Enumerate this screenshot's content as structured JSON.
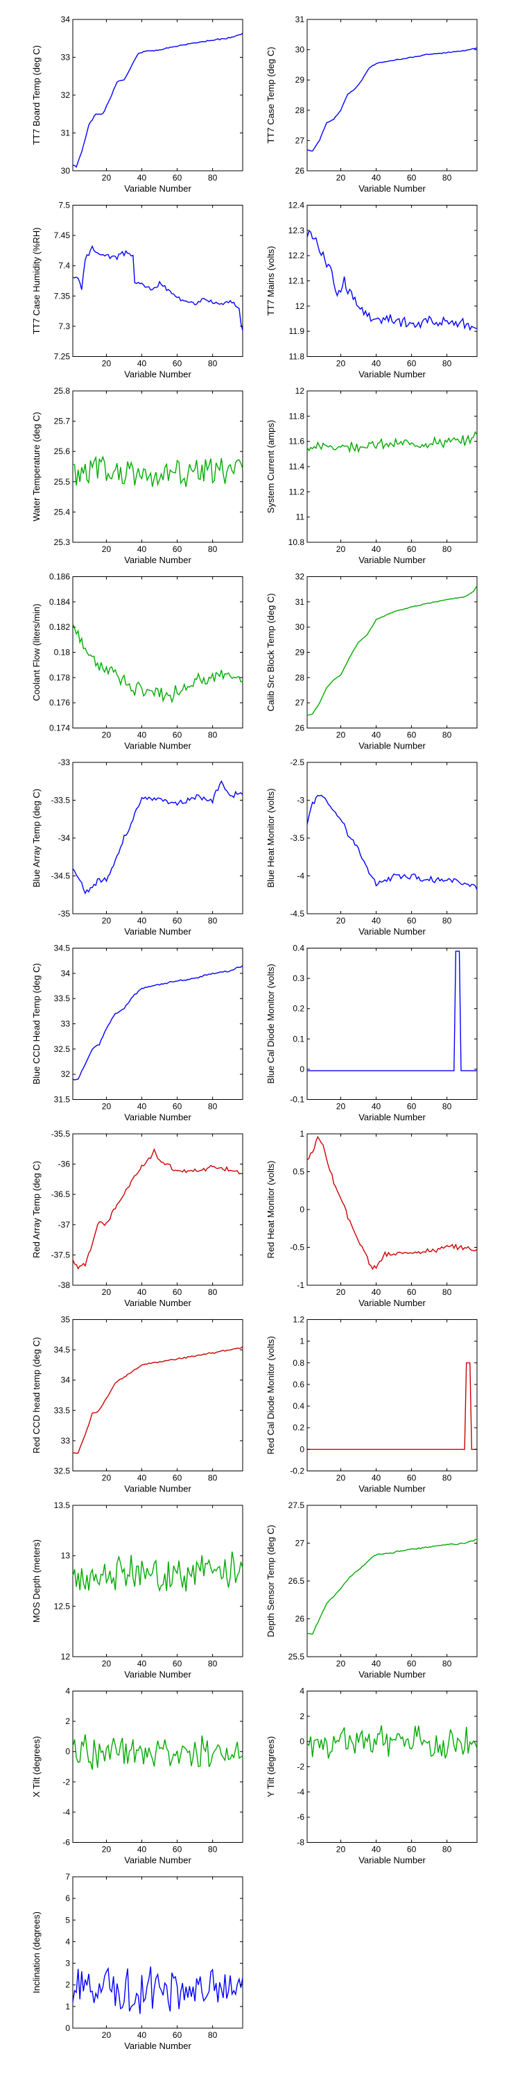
{
  "chart_data": [
    {
      "type": "line",
      "ylabel": "TT7 Board Temp (deg C)",
      "xlabel": "Variable Number",
      "color": "#0000ff",
      "xlim": [
        1,
        97
      ],
      "ylim": [
        30,
        34
      ],
      "xticks": [
        20,
        40,
        60,
        80
      ],
      "yticks": [
        30,
        31,
        32,
        33,
        34
      ],
      "ytick_labels": [
        "30",
        "31",
        "32",
        "33",
        "34"
      ],
      "kx": [
        1,
        3,
        6,
        10,
        14,
        18,
        22,
        26,
        30,
        34,
        38,
        42,
        50,
        60,
        70,
        80,
        90,
        97
      ],
      "ky": [
        30.15,
        30.1,
        30.5,
        31.2,
        31.5,
        31.5,
        31.9,
        32.35,
        32.4,
        32.75,
        33.1,
        33.15,
        33.2,
        33.3,
        33.38,
        33.45,
        33.52,
        33.62
      ],
      "noise": 0.02,
      "seed": 1
    },
    {
      "type": "line",
      "ylabel": "TT7 Case Temp (deg C)",
      "xlabel": "Variable Number",
      "color": "#0000ff",
      "xlim": [
        1,
        97
      ],
      "ylim": [
        26,
        31
      ],
      "xticks": [
        20,
        40,
        60,
        80
      ],
      "yticks": [
        26,
        27,
        28,
        29,
        30,
        31
      ],
      "ytick_labels": [
        "26",
        "27",
        "28",
        "29",
        "30",
        "31"
      ],
      "kx": [
        1,
        4,
        8,
        12,
        16,
        20,
        24,
        28,
        32,
        36,
        40,
        50,
        60,
        70,
        80,
        90,
        97
      ],
      "ky": [
        26.7,
        26.65,
        27.0,
        27.6,
        27.7,
        28.0,
        28.55,
        28.7,
        29.0,
        29.4,
        29.55,
        29.65,
        29.75,
        29.85,
        29.9,
        29.97,
        30.05
      ],
      "noise": 0.02,
      "seed": 2
    },
    {
      "type": "line",
      "ylabel": "TT7 Case Humidity (%RH)",
      "xlabel": "Variable Number",
      "color": "#0000ff",
      "xlim": [
        1,
        97
      ],
      "ylim": [
        7.25,
        7.5
      ],
      "xticks": [
        20,
        40,
        60,
        80
      ],
      "yticks": [
        7.25,
        7.3,
        7.35,
        7.4,
        7.45,
        7.5
      ],
      "ytick_labels": [
        "7.25",
        "7.3",
        "7.35",
        "7.4",
        "7.45",
        "7.5"
      ],
      "kx": [
        1,
        4,
        6,
        8,
        10,
        12,
        15,
        18,
        22,
        26,
        30,
        35,
        36,
        40,
        45,
        50,
        55,
        60,
        65,
        70,
        75,
        80,
        85,
        90,
        95,
        97
      ],
      "ky": [
        7.38,
        7.38,
        7.36,
        7.41,
        7.42,
        7.43,
        7.42,
        7.42,
        7.415,
        7.415,
        7.42,
        7.42,
        7.37,
        7.37,
        7.36,
        7.37,
        7.36,
        7.345,
        7.345,
        7.34,
        7.345,
        7.34,
        7.335,
        7.34,
        7.33,
        7.29
      ],
      "noise": 0.005,
      "seed": 3
    },
    {
      "type": "line",
      "ylabel": "TT7 Mains  (volts)",
      "xlabel": "Variable Number",
      "color": "#0000ff",
      "xlim": [
        1,
        97
      ],
      "ylim": [
        11.8,
        12.4
      ],
      "xticks": [
        20,
        40,
        60,
        80
      ],
      "yticks": [
        11.8,
        11.9,
        12.0,
        12.1,
        12.2,
        12.3,
        12.4
      ],
      "ytick_labels": [
        "11.8",
        "11.9",
        "12",
        "12.1",
        "12.2",
        "12.3",
        "12.4"
      ],
      "kx": [
        1,
        3,
        6,
        10,
        14,
        18,
        22,
        26,
        30,
        34,
        38,
        42,
        50,
        60,
        70,
        80,
        90,
        97
      ],
      "ky": [
        12.28,
        12.3,
        12.25,
        12.2,
        12.15,
        12.05,
        12.1,
        12.05,
        12.0,
        11.97,
        11.95,
        11.95,
        11.94,
        11.93,
        11.94,
        11.94,
        11.93,
        11.9
      ],
      "noise": 0.03,
      "seed": 4
    },
    {
      "type": "line",
      "ylabel": "Water Temperature (deg C)",
      "xlabel": "Variable Number",
      "color": "#00aa00",
      "xlim": [
        1,
        97
      ],
      "ylim": [
        25.3,
        25.8
      ],
      "xticks": [
        20,
        40,
        60,
        80
      ],
      "yticks": [
        25.3,
        25.4,
        25.5,
        25.6,
        25.7,
        25.8
      ],
      "ytick_labels": [
        "25.3",
        "25.4",
        "25.5",
        "25.6",
        "25.7",
        "25.8"
      ],
      "kx": [
        1,
        97
      ],
      "ky": [
        25.53,
        25.53
      ],
      "noise": 0.07,
      "seed": 5
    },
    {
      "type": "line",
      "ylabel": "System Current (amps)",
      "xlabel": "Variable Number",
      "color": "#00aa00",
      "xlim": [
        1,
        97
      ],
      "ylim": [
        10.8,
        12
      ],
      "xticks": [
        20,
        40,
        60,
        80
      ],
      "yticks": [
        10.8,
        11.0,
        11.2,
        11.4,
        11.6,
        11.8,
        12.0
      ],
      "ytick_labels": [
        "10.8",
        "11",
        "11.2",
        "11.4",
        "11.6",
        "11.8",
        "12"
      ],
      "kx": [
        1,
        90,
        97
      ],
      "ky": [
        11.55,
        11.6,
        11.65
      ],
      "noise": 0.05,
      "seed": 6
    },
    {
      "type": "line",
      "ylabel": "Coolant Flow (liters/min)",
      "xlabel": "Variable Number",
      "color": "#00aa00",
      "xlim": [
        1,
        97
      ],
      "ylim": [
        0.174,
        0.186
      ],
      "xticks": [
        20,
        40,
        60,
        80
      ],
      "yticks": [
        0.174,
        0.176,
        0.178,
        0.18,
        0.182,
        0.184,
        0.186
      ],
      "ytick_labels": [
        "0.174",
        "0.176",
        "0.178",
        "0.18",
        "0.182",
        "0.184",
        "0.186"
      ],
      "kx": [
        1,
        5,
        15,
        25,
        35,
        45,
        55,
        65,
        75,
        85,
        97
      ],
      "ky": [
        0.1825,
        0.181,
        0.179,
        0.1785,
        0.177,
        0.177,
        0.1765,
        0.1775,
        0.178,
        0.178,
        0.1778
      ],
      "noise": 0.0007,
      "seed": 7
    },
    {
      "type": "line",
      "ylabel": "Calib Src Block Temp (deg C)",
      "xlabel": "Variable Number",
      "color": "#00aa00",
      "xlim": [
        1,
        97
      ],
      "ylim": [
        26,
        32
      ],
      "xticks": [
        20,
        40,
        60,
        80
      ],
      "yticks": [
        26,
        27,
        28,
        29,
        30,
        31,
        32
      ],
      "ytick_labels": [
        "26",
        "27",
        "28",
        "29",
        "30",
        "31",
        "32"
      ],
      "kx": [
        1,
        4,
        8,
        12,
        16,
        20,
        25,
        30,
        35,
        40,
        50,
        60,
        70,
        80,
        90,
        95,
        97
      ],
      "ky": [
        26.5,
        26.55,
        27.0,
        27.6,
        27.9,
        28.1,
        28.8,
        29.4,
        29.7,
        30.3,
        30.6,
        30.8,
        30.95,
        31.1,
        31.2,
        31.4,
        31.65
      ],
      "noise": 0.02,
      "seed": 8
    },
    {
      "type": "line",
      "ylabel": "Blue Array Temp (deg C)",
      "xlabel": "Variable Number",
      "color": "#0000ff",
      "xlim": [
        1,
        97
      ],
      "ylim": [
        -35,
        -33
      ],
      "xticks": [
        20,
        40,
        60,
        80
      ],
      "yticks": [
        -35,
        -34.5,
        -34,
        -33.5,
        -33
      ],
      "ytick_labels": [
        "-35",
        "-34.5",
        "-34",
        "-33.5",
        "-33"
      ],
      "kx": [
        1,
        5,
        8,
        12,
        16,
        20,
        25,
        30,
        35,
        40,
        50,
        60,
        70,
        80,
        85,
        90,
        97
      ],
      "ky": [
        -34.4,
        -34.55,
        -34.75,
        -34.65,
        -34.55,
        -34.55,
        -34.3,
        -34.0,
        -33.75,
        -33.45,
        -33.5,
        -33.55,
        -33.45,
        -33.5,
        -33.25,
        -33.45,
        -33.4
      ],
      "noise": 0.05,
      "seed": 9
    },
    {
      "type": "line",
      "ylabel": "Blue Heat Monitor (volts)",
      "xlabel": "Variable Number",
      "color": "#0000ff",
      "xlim": [
        1,
        97
      ],
      "ylim": [
        -4.5,
        -2.5
      ],
      "xticks": [
        20,
        40,
        60,
        80
      ],
      "yticks": [
        -4.5,
        -4,
        -3.5,
        -3,
        -2.5
      ],
      "ytick_labels": [
        "-4.5",
        "-4",
        "-3.5",
        "-3",
        "-2.5"
      ],
      "kx": [
        1,
        4,
        8,
        12,
        16,
        20,
        25,
        30,
        35,
        40,
        50,
        60,
        70,
        80,
        90,
        97
      ],
      "ky": [
        -3.3,
        -3.05,
        -2.9,
        -3.0,
        -3.15,
        -3.25,
        -3.5,
        -3.65,
        -3.9,
        -4.1,
        -4.0,
        -4.0,
        -4.05,
        -4.05,
        -4.1,
        -4.15
      ],
      "noise": 0.05,
      "seed": 10
    },
    {
      "type": "line",
      "ylabel": "Blue CCD Head Temp (deg C)",
      "xlabel": "Variable Number",
      "color": "#0000ff",
      "xlim": [
        1,
        97
      ],
      "ylim": [
        31.5,
        34.5
      ],
      "xticks": [
        20,
        40,
        60,
        80
      ],
      "yticks": [
        31.5,
        32,
        32.5,
        33,
        33.5,
        34,
        34.5
      ],
      "ytick_labels": [
        "31.5",
        "32",
        "32.5",
        "33",
        "33.5",
        "34",
        "34.5"
      ],
      "kx": [
        1,
        4,
        8,
        12,
        16,
        20,
        25,
        30,
        35,
        40,
        50,
        60,
        70,
        80,
        90,
        97
      ],
      "ky": [
        31.9,
        31.9,
        32.2,
        32.5,
        32.6,
        32.9,
        33.2,
        33.3,
        33.55,
        33.7,
        33.78,
        33.85,
        33.9,
        34.0,
        34.05,
        34.15
      ],
      "noise": 0.02,
      "seed": 11
    },
    {
      "type": "line",
      "ylabel": "Blue Cal Diode Monitor (volts)",
      "xlabel": "Variable Number",
      "color": "#0000ff",
      "xlim": [
        1,
        97
      ],
      "ylim": [
        -0.1,
        0.4
      ],
      "xticks": [
        20,
        40,
        60,
        80
      ],
      "yticks": [
        -0.1,
        0,
        0.1,
        0.2,
        0.3,
        0.4
      ],
      "ytick_labels": [
        "-0.1",
        "0",
        "0.1",
        "0.2",
        "0.3",
        "0.4"
      ],
      "kx": [
        1,
        84,
        85,
        86,
        87,
        88,
        89,
        97
      ],
      "ky": [
        -0.005,
        -0.005,
        0.39,
        0.39,
        0.39,
        -0.005,
        -0.005,
        -0.005
      ],
      "noise": 0,
      "seed": 12
    },
    {
      "type": "line",
      "ylabel": "Red Array Temp (deg C)",
      "xlabel": "Variable Number",
      "color": "#cc0000",
      "xlim": [
        1,
        97
      ],
      "ylim": [
        -38,
        -35.5
      ],
      "xticks": [
        20,
        40,
        60,
        80
      ],
      "yticks": [
        -38,
        -37.5,
        -37,
        -36.5,
        -36,
        -35.5
      ],
      "ytick_labels": [
        "-38",
        "-37.5",
        "-37",
        "-36.5",
        "-36",
        "-35.5"
      ],
      "kx": [
        1,
        4,
        8,
        12,
        16,
        20,
        25,
        30,
        35,
        40,
        45,
        47,
        50,
        60,
        70,
        80,
        90,
        97
      ],
      "ky": [
        -37.6,
        -37.7,
        -37.65,
        -37.3,
        -36.95,
        -37.0,
        -36.7,
        -36.5,
        -36.25,
        -36.05,
        -35.9,
        -35.75,
        -35.95,
        -36.1,
        -36.1,
        -36.05,
        -36.1,
        -36.15
      ],
      "noise": 0.05,
      "seed": 13
    },
    {
      "type": "line",
      "ylabel": "Red Heat Monitor (volts)",
      "xlabel": "Variable Number",
      "color": "#cc0000",
      "xlim": [
        1,
        97
      ],
      "ylim": [
        -1,
        1
      ],
      "xticks": [
        20,
        40,
        60,
        80
      ],
      "yticks": [
        -1,
        -0.5,
        0,
        0.5,
        1
      ],
      "ytick_labels": [
        "-1",
        "-0.5",
        "0",
        "0.5",
        "1"
      ],
      "kx": [
        1,
        4,
        7,
        10,
        13,
        16,
        20,
        25,
        30,
        35,
        38,
        40,
        45,
        50,
        60,
        70,
        80,
        90,
        97
      ],
      "ky": [
        0.65,
        0.75,
        0.95,
        0.85,
        0.6,
        0.35,
        0.15,
        -0.15,
        -0.4,
        -0.65,
        -0.8,
        -0.75,
        -0.6,
        -0.6,
        -0.55,
        -0.55,
        -0.5,
        -0.5,
        -0.55
      ],
      "noise": 0.04,
      "seed": 14
    },
    {
      "type": "line",
      "ylabel": "Red CCD head temp (deg C)",
      "xlabel": "Variable Number",
      "color": "#cc0000",
      "xlim": [
        1,
        97
      ],
      "ylim": [
        32.5,
        35
      ],
      "xticks": [
        20,
        40,
        60,
        80
      ],
      "yticks": [
        32.5,
        33,
        33.5,
        34,
        34.5,
        35
      ],
      "ytick_labels": [
        "32.5",
        "33",
        "33.5",
        "34",
        "34.5",
        "35"
      ],
      "kx": [
        1,
        4,
        8,
        12,
        16,
        20,
        25,
        30,
        35,
        40,
        50,
        60,
        70,
        80,
        90,
        97
      ],
      "ky": [
        32.8,
        32.8,
        33.1,
        33.45,
        33.5,
        33.7,
        33.95,
        34.05,
        34.15,
        34.25,
        34.3,
        34.35,
        34.4,
        34.45,
        34.5,
        34.55
      ],
      "noise": 0.015,
      "seed": 15
    },
    {
      "type": "line",
      "ylabel": "Red Cal Diode Monitor (volts)",
      "xlabel": "Variable Number",
      "color": "#cc0000",
      "xlim": [
        1,
        97
      ],
      "ylim": [
        -0.2,
        1.2
      ],
      "xticks": [
        20,
        40,
        60,
        80
      ],
      "yticks": [
        -0.2,
        0,
        0.2,
        0.4,
        0.6,
        0.8,
        1.0,
        1.2
      ],
      "ytick_labels": [
        "-0.2",
        "0",
        "0.2",
        "0.4",
        "0.6",
        "0.8",
        "1",
        "1.2"
      ],
      "kx": [
        1,
        90,
        91,
        92,
        93,
        94,
        95,
        97
      ],
      "ky": [
        0,
        0,
        0.8,
        0.8,
        0.8,
        0,
        0,
        0
      ],
      "noise": 0,
      "seed": 16
    },
    {
      "type": "line",
      "ylabel": "MOS Depth  (meters)",
      "xlabel": "Variable Number",
      "color": "#00aa00",
      "xlim": [
        1,
        97
      ],
      "ylim": [
        12,
        13.5
      ],
      "xticks": [
        20,
        40,
        60,
        80
      ],
      "yticks": [
        12,
        12.5,
        13,
        13.5
      ],
      "ytick_labels": [
        "12",
        "12.5",
        "13",
        "13.5"
      ],
      "kx": [
        1,
        97
      ],
      "ky": [
        12.8,
        12.85
      ],
      "noise": 0.22,
      "seed": 17
    },
    {
      "type": "line",
      "ylabel": "Depth Sensor Temp (deg C)",
      "xlabel": "Variable Number",
      "color": "#00aa00",
      "xlim": [
        1,
        97
      ],
      "ylim": [
        25.5,
        27.5
      ],
      "xticks": [
        20,
        40,
        60,
        80
      ],
      "yticks": [
        25.5,
        26,
        26.5,
        27,
        27.5
      ],
      "ytick_labels": [
        "25.5",
        "26",
        "26.5",
        "27",
        "27.5"
      ],
      "kx": [
        1,
        4,
        8,
        12,
        16,
        20,
        25,
        30,
        35,
        40,
        50,
        60,
        70,
        80,
        90,
        97
      ],
      "ky": [
        25.8,
        25.8,
        26.0,
        26.2,
        26.3,
        26.4,
        26.55,
        26.65,
        26.75,
        26.85,
        26.88,
        26.92,
        26.95,
        26.98,
        27.0,
        27.05
      ],
      "noise": 0.012,
      "seed": 18
    },
    {
      "type": "line",
      "ylabel": "X Tilt  (degrees)",
      "xlabel": "Variable Number",
      "color": "#00aa00",
      "xlim": [
        1,
        97
      ],
      "ylim": [
        -6,
        4
      ],
      "xticks": [
        20,
        40,
        60,
        80
      ],
      "yticks": [
        -6,
        -4,
        -2,
        0,
        2,
        4
      ],
      "ytick_labels": [
        "-6",
        "-4",
        "-2",
        "0",
        "2",
        "4"
      ],
      "kx": [
        1,
        97
      ],
      "ky": [
        0,
        0
      ],
      "noise": 1.3,
      "seed": 19
    },
    {
      "type": "line",
      "ylabel": "Y Tilt  (degrees)",
      "xlabel": "Variable Number",
      "color": "#00aa00",
      "xlim": [
        1,
        97
      ],
      "ylim": [
        -8,
        4
      ],
      "xticks": [
        20,
        40,
        60,
        80
      ],
      "yticks": [
        -8,
        -6,
        -4,
        -2,
        0,
        2,
        4
      ],
      "ytick_labels": [
        "-8",
        "-6",
        "-4",
        "-2",
        "0",
        "2",
        "4"
      ],
      "kx": [
        1,
        97
      ],
      "ky": [
        0,
        0
      ],
      "noise": 1.4,
      "seed": 20
    },
    {
      "type": "line",
      "ylabel": "Inclination  (degrees)",
      "xlabel": "Variable Number",
      "color": "#0000ff",
      "xlim": [
        1,
        97
      ],
      "ylim": [
        0,
        7
      ],
      "xticks": [
        20,
        40,
        60,
        80
      ],
      "yticks": [
        0,
        1,
        2,
        3,
        4,
        5,
        6,
        7
      ],
      "ytick_labels": [
        "0",
        "1",
        "2",
        "3",
        "4",
        "5",
        "6",
        "7"
      ],
      "kx": [
        1,
        97
      ],
      "ky": [
        1.8,
        1.8
      ],
      "noise": 1.2,
      "seed": 21,
      "clamp_min": 0.2
    }
  ]
}
